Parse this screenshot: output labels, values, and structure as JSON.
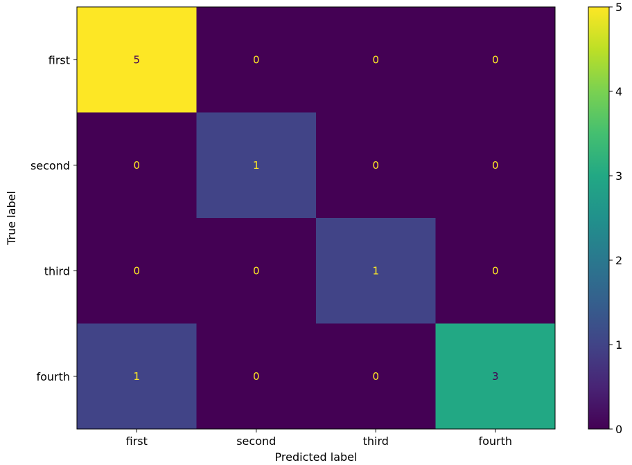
{
  "chart_data": {
    "type": "heatmap",
    "title": "",
    "xlabel": "Predicted label",
    "ylabel": "True label",
    "x_categories": [
      "first",
      "second",
      "third",
      "fourth"
    ],
    "y_categories": [
      "first",
      "second",
      "third",
      "fourth"
    ],
    "values": [
      [
        5,
        0,
        0,
        0
      ],
      [
        0,
        1,
        0,
        0
      ],
      [
        0,
        0,
        1,
        0
      ],
      [
        1,
        0,
        0,
        3
      ]
    ],
    "colormap": "viridis",
    "colorbar": {
      "range": [
        0,
        5
      ],
      "ticks": [
        "0",
        "1",
        "2",
        "3",
        "4",
        "5"
      ]
    },
    "colors": {
      "low_text": "#fde725",
      "high_text": "#440154"
    }
  }
}
